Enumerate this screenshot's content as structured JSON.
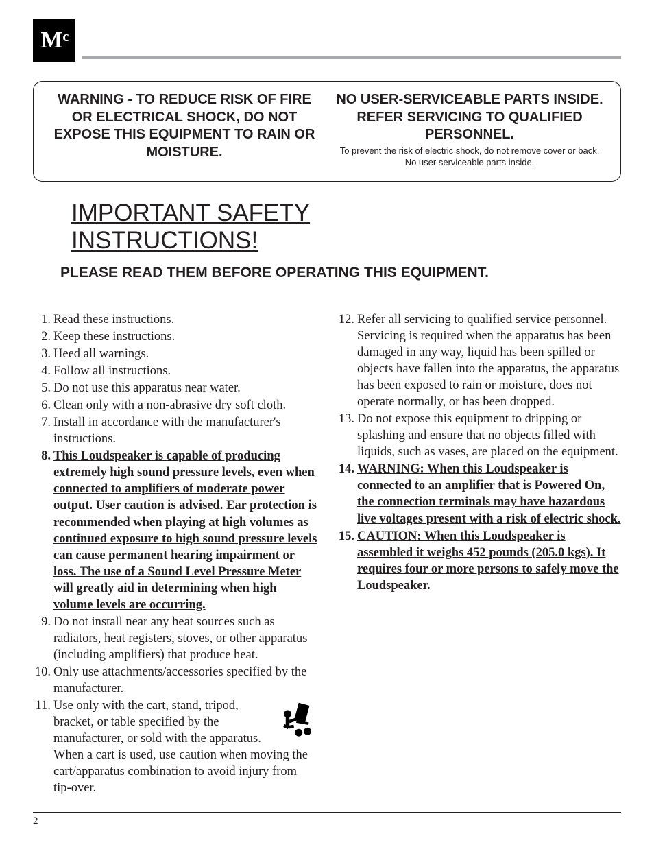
{
  "header": {
    "logo_text": "MᶜC"
  },
  "warning_box": {
    "left_heading": "WARNING - TO REDUCE RISK OF FIRE OR ELECTRICAL SHOCK, DO NOT EXPOSE THIS EQUIPMENT TO RAIN OR MOISTURE.",
    "right_heading": "NO USER-SERVICEABLE PARTS INSIDE. REFER SERVICING TO QUALIFIED PERSONNEL.",
    "right_sub": "To prevent the risk of electric shock, do not remove cover or back. No user serviceable parts inside."
  },
  "section": {
    "title_line1": "IMPORTANT SAFETY",
    "title_line2": "INSTRUCTIONS!",
    "subtitle": "PLEASE READ THEM BEFORE OPERATING THIS EQUIPMENT."
  },
  "items_left": [
    {
      "n": "1.",
      "text": "Read these instructions.",
      "bold": false
    },
    {
      "n": "2.",
      "text": "Keep these instructions.",
      "bold": false
    },
    {
      "n": "3.",
      "text": "Heed all warnings.",
      "bold": false
    },
    {
      "n": "4.",
      "text": "Follow all instructions.",
      "bold": false
    },
    {
      "n": "5.",
      "text": "Do not use this apparatus near water.",
      "bold": false
    },
    {
      "n": "6.",
      "text": "Clean only with a non-abrasive dry soft cloth.",
      "bold": false
    },
    {
      "n": "7.",
      "text": "Install in accordance with the manufacturer's instructions.",
      "bold": false
    },
    {
      "n": "8.",
      "text": "This Loudspeaker is capable of producing extremely high sound pressure levels, even when connected to amplifiers of moderate power output. User caution is advised. Ear protection is recommended when playing at high volumes as continued exposure to high sound pressure levels can cause permanent hearing impairment or loss. The use of a Sound Level Pressure Meter will greatly aid in determining when high volume levels are occurring.",
      "bold": true
    },
    {
      "n": "9.",
      "text": "Do not install near any heat sources such as radiators, heat registers, stoves, or other apparatus (including amplifiers) that produce heat.",
      "bold": false
    },
    {
      "n": "10.",
      "text": "Only use attachments/accessories specified by the manufacturer.",
      "bold": false
    },
    {
      "n": "11.",
      "text": "Use only with the cart, stand, tripod, bracket, or table specified by the manufacturer, or sold with the apparatus. When a cart is used, use caution when moving the cart/apparatus combination to avoid injury from tip-over.",
      "bold": false,
      "icon": true
    }
  ],
  "items_right": [
    {
      "n": "12.",
      "text": "Refer all servicing to qualified service personnel. Servicing is required when the apparatus has been damaged in any way, liquid has been spilled or objects have fallen into the apparatus, the apparatus has been exposed to rain or moisture, does not operate normally, or has been dropped.",
      "bold": false
    },
    {
      "n": "13.",
      "text": "Do not expose this equipment to dripping or splashing and ensure that no objects filled with liquids, such as vases, are placed on the equipment.",
      "bold": false
    },
    {
      "n": "14.",
      "text": "WARNING: When this Loudspeaker is connected to an amplifier that is Powered On, the connection terminals may have hazardous live voltages present with a risk of electric shock.",
      "bold": true
    },
    {
      "n": "15.",
      "text": "CAUTION: When this Loudspeaker is assembled it weighs 452 pounds (205.0 kgs). It requires four or more persons to safely move the Loudspeaker.",
      "bold": true
    }
  ],
  "footer": {
    "page_number": "2"
  },
  "styles": {
    "bg": "#ffffff",
    "text": "#231f20",
    "rule": "#a7a9ac"
  }
}
